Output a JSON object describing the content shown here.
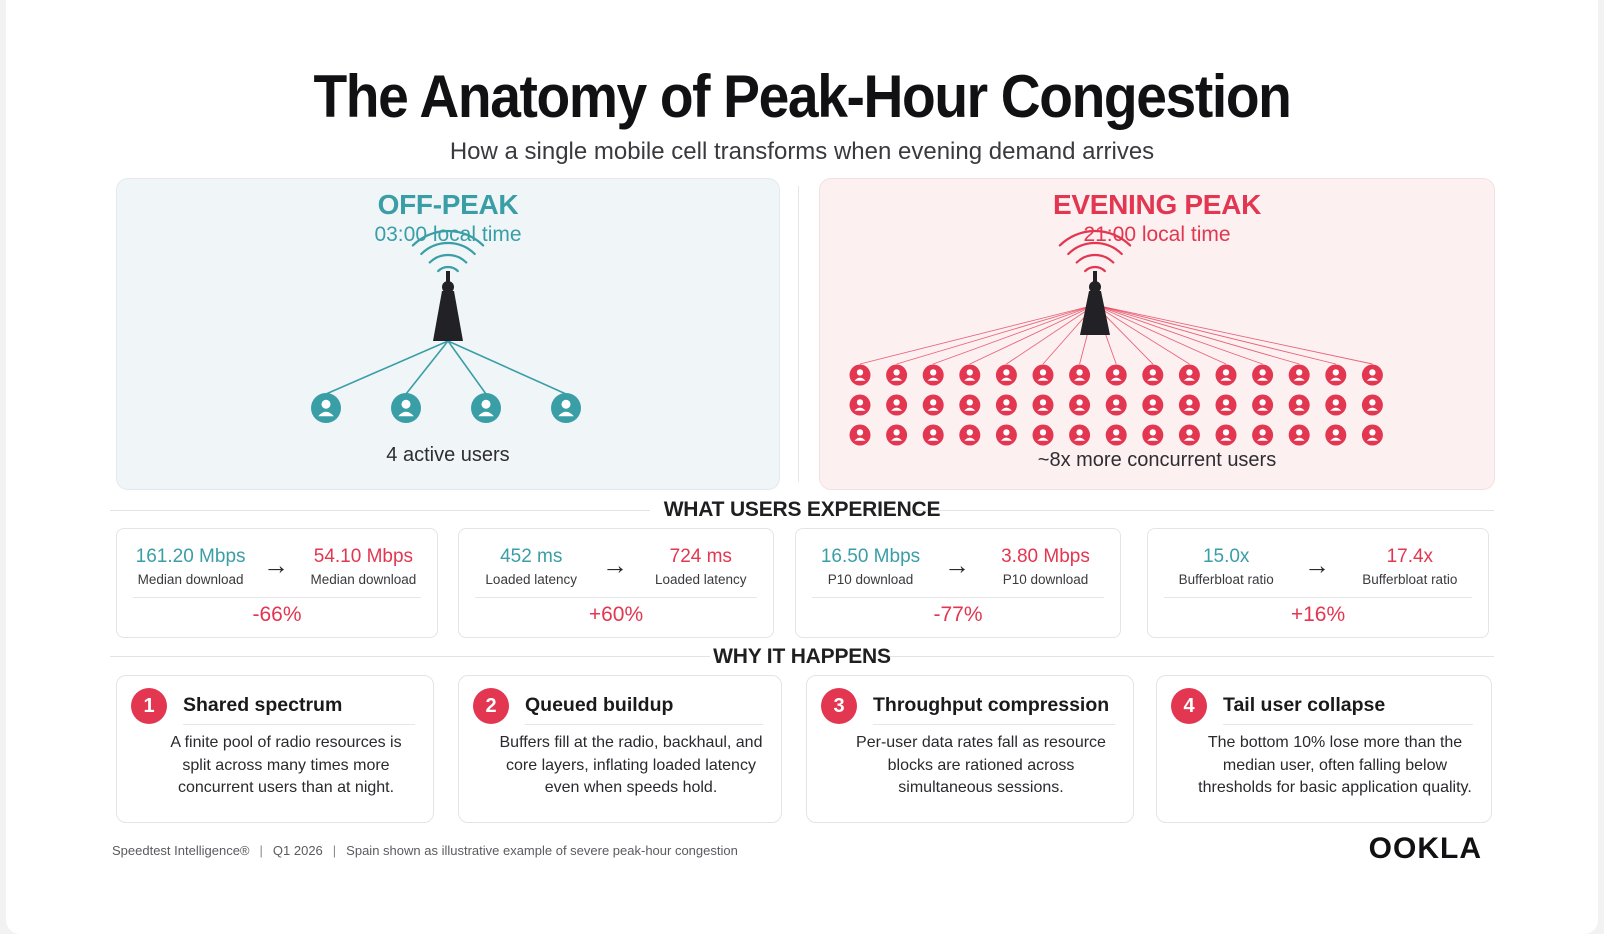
{
  "header": {
    "title": "The Anatomy of Peak-Hour Congestion",
    "subtitle": "How a single mobile cell transforms when evening demand arrives"
  },
  "off_peak": {
    "heading": "OFF-PEAK",
    "time": "03:00 local time",
    "caption": "4 active users",
    "user_count": 4,
    "color": "#3a9ea6"
  },
  "evening_peak": {
    "heading": "EVENING PEAK",
    "time": "21:00 local time",
    "caption": "~8x more concurrent users",
    "grid_rows": 3,
    "grid_cols": 15,
    "color": "#e33650"
  },
  "experience": {
    "title": "WHAT USERS EXPERIENCE",
    "metrics": [
      {
        "before_value": "161.20 Mbps",
        "before_label": "Median download",
        "after_value": "54.10 Mbps",
        "after_label": "Median download",
        "change": "-66%"
      },
      {
        "before_value": "452 ms",
        "before_label": "Loaded latency",
        "after_value": "724 ms",
        "after_label": "Loaded latency",
        "change": "+60%"
      },
      {
        "before_value": "16.50 Mbps",
        "before_label": "P10 download",
        "after_value": "3.80 Mbps",
        "after_label": "P10 download",
        "change": "-77%"
      },
      {
        "before_value": "15.0x",
        "before_label": "Bufferbloat ratio",
        "after_value": "17.4x",
        "after_label": "Bufferbloat ratio",
        "change": "+16%"
      }
    ],
    "arrow_glyph": "→"
  },
  "reasons": {
    "title": "WHY IT HAPPENS",
    "items": [
      {
        "number": "1",
        "title": "Shared spectrum",
        "text": "A finite pool of radio resources is split across many times more concurrent users than at night."
      },
      {
        "number": "2",
        "title": "Queued buildup",
        "text": "Buffers fill at the radio, backhaul, and core layers, inflating loaded latency even when speeds hold."
      },
      {
        "number": "3",
        "title": "Throughput compression",
        "text": "Per-user data rates fall as resource blocks are rationed across simultaneous sessions."
      },
      {
        "number": "4",
        "title": "Tail user collapse",
        "text": "The bottom 10% lose more than the median user, often falling below thresholds for basic application quality."
      }
    ]
  },
  "footer": {
    "source": "Speedtest Intelligence®",
    "period": "Q1 2026",
    "note": "Spain shown as illustrative example of severe peak-hour congestion",
    "separator": "|"
  },
  "logo": {
    "text": "OOKLA"
  },
  "colors": {
    "teal": "#3a9ea6",
    "red": "#e33650",
    "tower": "#222226"
  }
}
